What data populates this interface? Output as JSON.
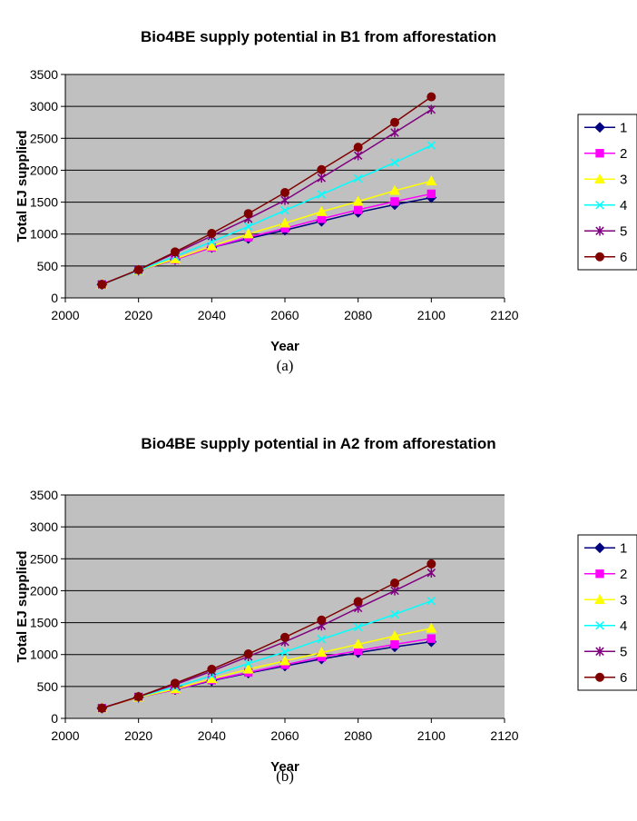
{
  "chart_data": [
    {
      "type": "line",
      "caption": "(a)",
      "title": "Bio4BE supply potential in B1 from afforestation",
      "xlabel": "Year",
      "ylabel": "Total EJ supplied",
      "xlim": [
        2000,
        2120
      ],
      "ylim": [
        0,
        3500
      ],
      "x_ticks": [
        2000,
        2020,
        2040,
        2060,
        2080,
        2100,
        2120
      ],
      "y_ticks": [
        0,
        500,
        1000,
        1500,
        2000,
        2500,
        3000,
        3500
      ],
      "grid": true,
      "legend_position": "right",
      "x": [
        2010,
        2020,
        2030,
        2040,
        2050,
        2060,
        2070,
        2080,
        2090,
        2100
      ],
      "series": [
        {
          "name": "1",
          "color": "#000080",
          "marker": "diamond",
          "values": [
            210,
            430,
            600,
            790,
            930,
            1060,
            1200,
            1340,
            1460,
            1570
          ]
        },
        {
          "name": "2",
          "color": "#ff00ff",
          "marker": "square",
          "values": [
            210,
            430,
            600,
            790,
            950,
            1090,
            1240,
            1380,
            1510,
            1630
          ]
        },
        {
          "name": "3",
          "color": "#ffff00",
          "marker": "triangle",
          "values": [
            210,
            430,
            610,
            810,
            1000,
            1170,
            1350,
            1510,
            1680,
            1830
          ]
        },
        {
          "name": "4",
          "color": "#00ffff",
          "marker": "x",
          "values": [
            210,
            430,
            650,
            880,
            1120,
            1370,
            1620,
            1870,
            2120,
            2390
          ]
        },
        {
          "name": "5",
          "color": "#800080",
          "marker": "star",
          "values": [
            210,
            440,
            700,
            970,
            1240,
            1530,
            1880,
            2230,
            2590,
            2950
          ]
        },
        {
          "name": "6",
          "color": "#800000",
          "marker": "circle",
          "values": [
            210,
            440,
            720,
            1010,
            1320,
            1650,
            2010,
            2360,
            2750,
            3150
          ]
        }
      ]
    },
    {
      "type": "line",
      "caption": "(b)",
      "title": "Bio4BE supply potential in A2 from afforestation",
      "xlabel": "Year",
      "ylabel": "Total EJ supplied",
      "xlim": [
        2000,
        2120
      ],
      "ylim": [
        0,
        3500
      ],
      "x_ticks": [
        2000,
        2020,
        2040,
        2060,
        2080,
        2100,
        2120
      ],
      "y_ticks": [
        0,
        500,
        1000,
        1500,
        2000,
        2500,
        3000,
        3500
      ],
      "grid": true,
      "legend_position": "right",
      "x": [
        2010,
        2020,
        2030,
        2040,
        2050,
        2060,
        2070,
        2080,
        2090,
        2100
      ],
      "series": [
        {
          "name": "1",
          "color": "#000080",
          "marker": "diamond",
          "values": [
            160,
            330,
            450,
            590,
            710,
            820,
            930,
            1030,
            1120,
            1200
          ]
        },
        {
          "name": "2",
          "color": "#ff00ff",
          "marker": "square",
          "values": [
            160,
            330,
            450,
            600,
            720,
            840,
            960,
            1060,
            1160,
            1250
          ]
        },
        {
          "name": "3",
          "color": "#ffff00",
          "marker": "triangle",
          "values": [
            160,
            330,
            460,
            620,
            770,
            900,
            1030,
            1160,
            1290,
            1410
          ]
        },
        {
          "name": "4",
          "color": "#00ffff",
          "marker": "x",
          "values": [
            160,
            340,
            490,
            670,
            860,
            1040,
            1240,
            1430,
            1630,
            1840
          ]
        },
        {
          "name": "5",
          "color": "#800080",
          "marker": "star",
          "values": [
            160,
            340,
            530,
            740,
            970,
            1200,
            1450,
            1730,
            2000,
            2280
          ]
        },
        {
          "name": "6",
          "color": "#800000",
          "marker": "circle",
          "values": [
            160,
            340,
            550,
            770,
            1010,
            1270,
            1540,
            1830,
            2120,
            2420
          ]
        }
      ]
    }
  ]
}
